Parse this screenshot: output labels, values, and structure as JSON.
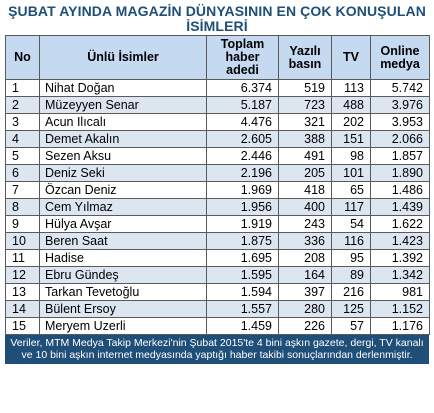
{
  "title": "ŞUBAT AYINDA MAGAZİN DÜNYASININ EN ÇOK KONUŞULAN İSİMLERİ",
  "headers": {
    "no": "No",
    "name": "Ünlü İsimler",
    "total": "Toplam haber adedi",
    "press": "Yazılı basın",
    "tv": "TV",
    "online": "Online medya"
  },
  "rows": [
    {
      "no": "1",
      "name": "Nihat Doğan",
      "total": "6.374",
      "press": "519",
      "tv": "113",
      "online": "5.742"
    },
    {
      "no": "2",
      "name": "Müzeyyen Senar",
      "total": "5.187",
      "press": "723",
      "tv": "488",
      "online": "3.976"
    },
    {
      "no": "3",
      "name": "Acun Ilıcalı",
      "total": "4.476",
      "press": "321",
      "tv": "202",
      "online": "3.953"
    },
    {
      "no": "4",
      "name": "Demet Akalın",
      "total": "2.605",
      "press": "388",
      "tv": "151",
      "online": "2.066"
    },
    {
      "no": "5",
      "name": "Sezen Aksu",
      "total": "2.446",
      "press": "491",
      "tv": "98",
      "online": "1.857"
    },
    {
      "no": "6",
      "name": "Deniz Seki",
      "total": "2.196",
      "press": "205",
      "tv": "101",
      "online": "1.890"
    },
    {
      "no": "7",
      "name": "Özcan Deniz",
      "total": "1.969",
      "press": "418",
      "tv": "65",
      "online": "1.486"
    },
    {
      "no": "8",
      "name": "Cem Yılmaz",
      "total": "1.956",
      "press": "400",
      "tv": "117",
      "online": "1.439"
    },
    {
      "no": "9",
      "name": "Hülya Avşar",
      "total": "1.919",
      "press": "243",
      "tv": "54",
      "online": "1.622"
    },
    {
      "no": "10",
      "name": "Beren Saat",
      "total": "1.875",
      "press": "336",
      "tv": "116",
      "online": "1.423"
    },
    {
      "no": "11",
      "name": "Hadise",
      "total": "1.695",
      "press": "208",
      "tv": "95",
      "online": "1.392"
    },
    {
      "no": "12",
      "name": "Ebru Gündeş",
      "total": "1.595",
      "press": "164",
      "tv": "89",
      "online": "1.342"
    },
    {
      "no": "13",
      "name": "Tarkan Tevetoğlu",
      "total": "1.594",
      "press": "397",
      "tv": "216",
      "online": "981"
    },
    {
      "no": "14",
      "name": "Bülent Ersoy",
      "total": "1.557",
      "press": "280",
      "tv": "125",
      "online": "1.152"
    },
    {
      "no": "15",
      "name": "Meryem Uzerli",
      "total": "1.459",
      "press": "226",
      "tv": "57",
      "online": "1.176"
    }
  ],
  "footer": "Veriler, MTM Medya Takip Merkezi'nin Şubat 2015'te 4 bini aşkın gazete, dergi, TV kanalı ve 10 bini aşkın internet medyasında yaptığı haber takibi sonuçlarından derlenmiştir.",
  "colors": {
    "title": "#1f4e79",
    "header_bg": "#c5d9f1",
    "alt_row_bg": "#dce6f1",
    "footer_bg": "#1f4e79"
  }
}
